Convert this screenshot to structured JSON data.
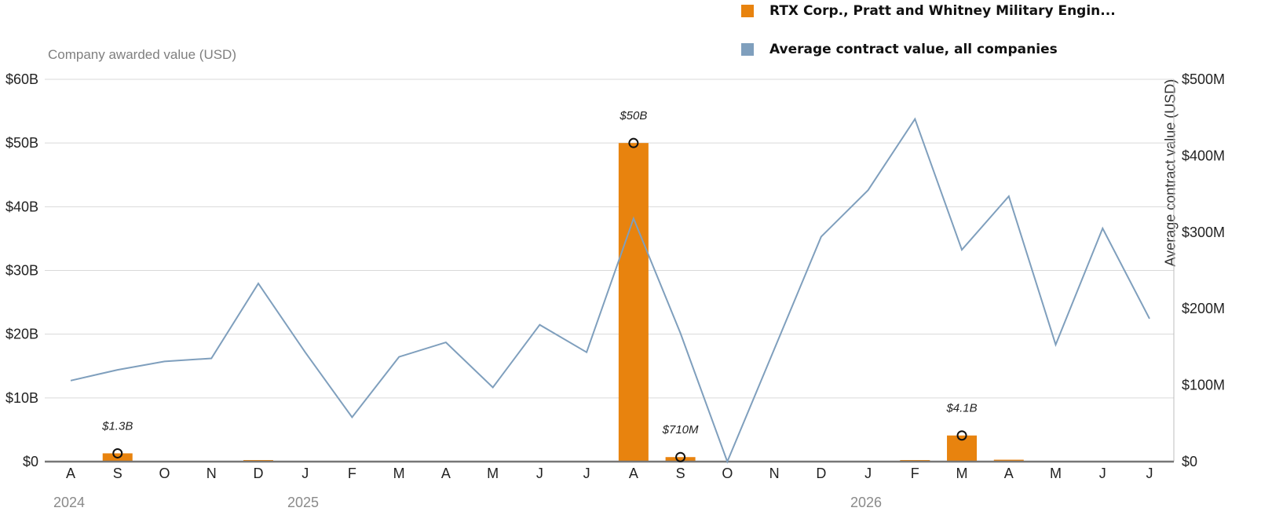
{
  "legend": {
    "company": {
      "label": "RTX Corp., Pratt and Whitney Military Engin...",
      "color": "#e8830e"
    },
    "average": {
      "label": "Average contract value, all companies",
      "color": "#7f9fbd"
    }
  },
  "years": [
    "2024",
    "2025",
    "2026"
  ],
  "chart_data": {
    "type": "bar+line",
    "categories": [
      "A",
      "S",
      "O",
      "N",
      "D",
      "J",
      "F",
      "M",
      "A",
      "M",
      "J",
      "J",
      "A",
      "S",
      "O",
      "N",
      "D",
      "J",
      "F",
      "M",
      "A",
      "M",
      "J",
      "J"
    ],
    "left_axis": {
      "label": "Company awarded value (USD)",
      "ylim": [
        0,
        60
      ],
      "unit": "B",
      "ticks": [
        "$0",
        "$10B",
        "$20B",
        "$30B",
        "$40B",
        "$50B",
        "$60B"
      ]
    },
    "right_axis": {
      "label": "Average contract value (USD)",
      "ylim": [
        0,
        500
      ],
      "unit": "M",
      "ticks": [
        "$0",
        "$100M",
        "$200M",
        "$300M",
        "$400M",
        "$500M"
      ]
    },
    "series": [
      {
        "name": "RTX Corp., Pratt and Whitney Military Engin...",
        "type": "bar",
        "axis": "left",
        "unit": "B",
        "values": [
          0,
          1.3,
          0,
          0,
          0.15,
          0,
          0,
          0,
          0,
          0,
          0,
          0,
          50,
          0.71,
          0,
          0,
          0,
          0,
          0.15,
          4.1,
          0.3,
          0,
          0,
          0
        ]
      },
      {
        "name": "Average contract value, all companies",
        "type": "line",
        "axis": "right",
        "unit": "M",
        "values": [
          106,
          120,
          131,
          135,
          233,
          143,
          58,
          137,
          156,
          97,
          179,
          143,
          318,
          168,
          0,
          147,
          294,
          355,
          448,
          277,
          347,
          153,
          305,
          187
        ]
      }
    ],
    "annotations": [
      {
        "index": 1,
        "text": "$1.3B"
      },
      {
        "index": 12,
        "text": "$50B"
      },
      {
        "index": 13,
        "text": "$710M"
      },
      {
        "index": 19,
        "text": "$4.1B"
      }
    ],
    "grid": true
  }
}
